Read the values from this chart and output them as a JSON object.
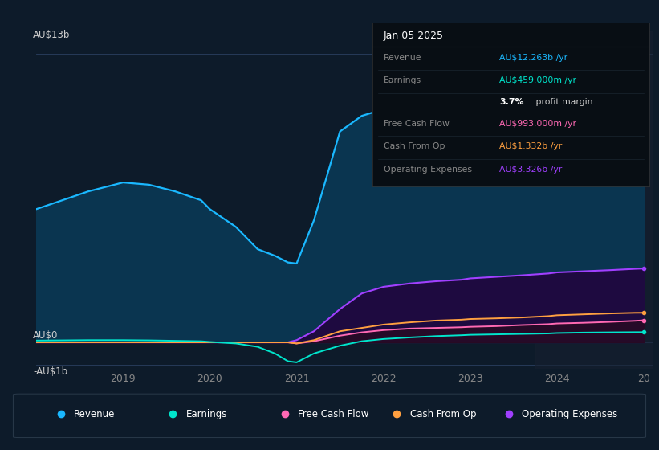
{
  "background_color": "#0d1b2a",
  "revenue_color": "#1ab8ff",
  "revenue_fill": "#0d3a5c",
  "earnings_color": "#00e5cc",
  "free_cash_flow_color": "#ff69b4",
  "cash_from_op_color": "#ffa040",
  "operating_expenses_color": "#a040ff",
  "operating_expenses_fill": "#2a0a50",
  "x_years": [
    2018.0,
    2018.3,
    2018.6,
    2018.9,
    2019.0,
    2019.3,
    2019.6,
    2019.9,
    2020.0,
    2020.3,
    2020.55,
    2020.75,
    2020.9,
    2021.0,
    2021.2,
    2021.5,
    2021.75,
    2022.0,
    2022.3,
    2022.6,
    2022.9,
    2023.0,
    2023.3,
    2023.6,
    2023.9,
    2024.0,
    2024.3,
    2024.6,
    2024.9,
    2025.0
  ],
  "revenue": [
    6.0,
    6.4,
    6.8,
    7.1,
    7.2,
    7.1,
    6.8,
    6.4,
    6.0,
    5.2,
    4.2,
    3.9,
    3.6,
    3.55,
    5.5,
    9.5,
    10.2,
    10.5,
    10.7,
    10.8,
    10.9,
    11.0,
    11.1,
    11.3,
    11.6,
    11.8,
    12.0,
    12.1,
    12.2,
    12.263
  ],
  "earnings": [
    0.08,
    0.09,
    0.1,
    0.1,
    0.1,
    0.09,
    0.07,
    0.05,
    0.02,
    -0.05,
    -0.2,
    -0.5,
    -0.85,
    -0.9,
    -0.5,
    -0.15,
    0.05,
    0.15,
    0.22,
    0.28,
    0.32,
    0.34,
    0.36,
    0.38,
    0.4,
    0.42,
    0.44,
    0.45,
    0.458,
    0.459
  ],
  "free_cash_flow": [
    0.0,
    0.0,
    0.0,
    0.0,
    0.0,
    0.0,
    0.0,
    0.0,
    0.0,
    0.0,
    0.0,
    0.0,
    0.0,
    -0.05,
    0.05,
    0.3,
    0.45,
    0.55,
    0.62,
    0.65,
    0.68,
    0.7,
    0.73,
    0.78,
    0.82,
    0.85,
    0.88,
    0.92,
    0.97,
    0.993
  ],
  "cash_from_op": [
    0.0,
    0.0,
    0.0,
    0.0,
    0.0,
    0.0,
    0.0,
    0.0,
    0.0,
    0.0,
    0.0,
    0.0,
    0.0,
    -0.05,
    0.1,
    0.5,
    0.65,
    0.8,
    0.9,
    0.98,
    1.02,
    1.05,
    1.08,
    1.12,
    1.18,
    1.22,
    1.26,
    1.3,
    1.33,
    1.332
  ],
  "operating_expenses": [
    0.0,
    0.0,
    0.0,
    0.0,
    0.0,
    0.0,
    0.0,
    0.0,
    0.0,
    0.0,
    0.0,
    0.0,
    0.0,
    0.1,
    0.5,
    1.5,
    2.2,
    2.5,
    2.65,
    2.75,
    2.82,
    2.88,
    2.95,
    3.02,
    3.1,
    3.15,
    3.2,
    3.25,
    3.31,
    3.326
  ],
  "x_tick_labels": [
    "2019",
    "2020",
    "2021",
    "2022",
    "2023",
    "2024",
    "20"
  ],
  "x_tick_positions": [
    2019,
    2020,
    2021,
    2022,
    2023,
    2024,
    2025
  ],
  "ylim": [
    -1.2,
    14.0
  ],
  "xlim": [
    2018.0,
    2025.1
  ],
  "panel_rows": [
    {
      "label": "Revenue",
      "value": "AU$12.263b /yr",
      "value_color": "#1ab8ff",
      "label_color": "#888888"
    },
    {
      "label": "Earnings",
      "value": "AU$459.000m /yr",
      "value_color": "#00e5cc",
      "label_color": "#888888"
    },
    {
      "label": "",
      "value_bold": "3.7%",
      "value_rest": " profit margin",
      "value_color": "#ffffff",
      "label_color": ""
    },
    {
      "label": "Free Cash Flow",
      "value": "AU$993.000m /yr",
      "value_color": "#ff69b4",
      "label_color": "#888888"
    },
    {
      "label": "Cash From Op",
      "value": "AU$1.332b /yr",
      "value_color": "#ffa040",
      "label_color": "#888888"
    },
    {
      "label": "Operating Expenses",
      "value": "AU$3.326b /yr",
      "value_color": "#a040ff",
      "label_color": "#888888"
    }
  ],
  "legend_items": [
    {
      "label": "Revenue",
      "color": "#1ab8ff"
    },
    {
      "label": "Earnings",
      "color": "#00e5cc"
    },
    {
      "label": "Free Cash Flow",
      "color": "#ff69b4"
    },
    {
      "label": "Cash From Op",
      "color": "#ffa040"
    },
    {
      "label": "Operating Expenses",
      "color": "#a040ff"
    }
  ]
}
